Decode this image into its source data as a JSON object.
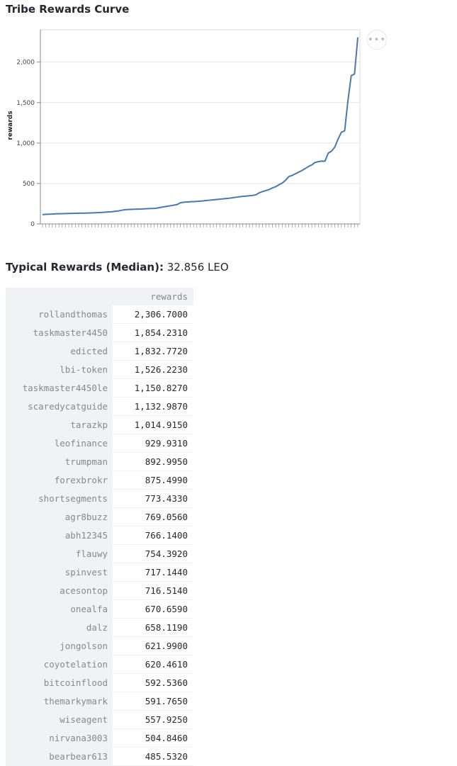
{
  "page": {
    "title": "Tribe Rewards Curve"
  },
  "summary": {
    "label": "Typical Rewards (Median):",
    "value": "32.856 LEO"
  },
  "menu": {
    "icon": "more-horizontal-icon",
    "glyph": "•••"
  },
  "table": {
    "column_header": "rewards",
    "rows": [
      {
        "name": "rollandthomas",
        "value": "2,306.7000"
      },
      {
        "name": "taskmaster4450",
        "value": "1,854.2310"
      },
      {
        "name": "edicted",
        "value": "1,832.7720"
      },
      {
        "name": "lbi-token",
        "value": "1,526.2230"
      },
      {
        "name": "taskmaster4450le",
        "value": "1,150.8270"
      },
      {
        "name": "scaredycatguide",
        "value": "1,132.9870"
      },
      {
        "name": "tarazkp",
        "value": "1,014.9150"
      },
      {
        "name": "leofinance",
        "value": "929.9310"
      },
      {
        "name": "trumpman",
        "value": "892.9950"
      },
      {
        "name": "forexbrokr",
        "value": "875.4990"
      },
      {
        "name": "shortsegments",
        "value": "773.4330"
      },
      {
        "name": "agr8buzz",
        "value": "769.0560"
      },
      {
        "name": "abh12345",
        "value": "766.1400"
      },
      {
        "name": "flauwy",
        "value": "754.3920"
      },
      {
        "name": "spinvest",
        "value": "717.1440"
      },
      {
        "name": "acesontop",
        "value": "716.5140"
      },
      {
        "name": "onealfa",
        "value": "670.6590"
      },
      {
        "name": "dalz",
        "value": "658.1190"
      },
      {
        "name": "jongolson",
        "value": "621.9900"
      },
      {
        "name": "coyotelation",
        "value": "620.4610"
      },
      {
        "name": "bitcoinflood",
        "value": "592.5360"
      },
      {
        "name": "themarkymark",
        "value": "591.7650"
      },
      {
        "name": "wiseagent",
        "value": "557.9250"
      },
      {
        "name": "nirvana3003",
        "value": "504.8460"
      },
      {
        "name": "bearbear613",
        "value": "485.5320"
      }
    ]
  },
  "chart_data": {
    "type": "line",
    "title": "Tribe Rewards Curve",
    "ylabel": "rewards",
    "xlabel": "",
    "ylim": [
      0,
      2400
    ],
    "yticks": [
      0,
      500,
      1000,
      1500,
      2000
    ],
    "ytick_labels": [
      "0",
      "500",
      "1,000",
      "1,500",
      "2,000"
    ],
    "grid": true,
    "line_color": "#4c78a8",
    "values": [
      115,
      118,
      120,
      122,
      125,
      126,
      127,
      128,
      129,
      130,
      131,
      132,
      133,
      134,
      135,
      136,
      138,
      140,
      142,
      145,
      148,
      150,
      155,
      160,
      168,
      175,
      178,
      180,
      182,
      183,
      184,
      186,
      188,
      190,
      192,
      196,
      205,
      212,
      218,
      225,
      232,
      240,
      262,
      268,
      272,
      274,
      276,
      278,
      282,
      285,
      290,
      294,
      298,
      302,
      306,
      310,
      314,
      318,
      324,
      330,
      336,
      340,
      344,
      348,
      352,
      360,
      385,
      400,
      412,
      425,
      445,
      460,
      485,
      505,
      540,
      585,
      600,
      620,
      640,
      660,
      685,
      710,
      730,
      760,
      770,
      776,
      775,
      875,
      900,
      950,
      1050,
      1133,
      1151,
      1526,
      1833,
      1854,
      2307
    ]
  }
}
